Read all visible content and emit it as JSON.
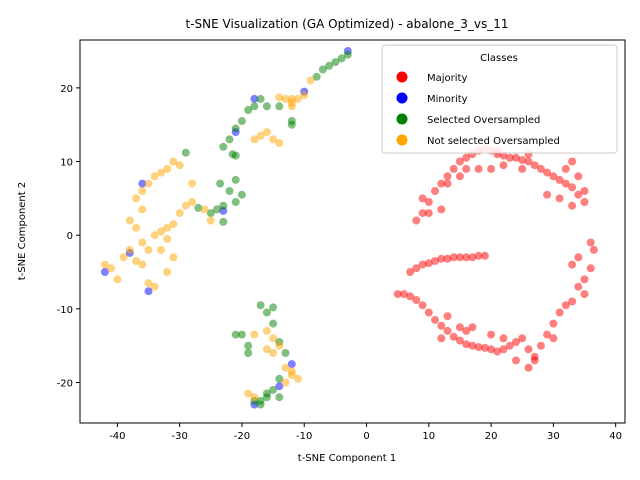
{
  "chart_data": {
    "type": "scatter",
    "title": "t-SNE Visualization (GA Optimized) - abalone_3_vs_11",
    "xlabel": "t-SNE Component 1",
    "ylabel": "t-SNE Component 2",
    "xlim": [
      -46,
      41.5
    ],
    "ylim": [
      -25.5,
      26.5
    ],
    "xticks": [
      -40,
      -30,
      -20,
      -10,
      0,
      10,
      20,
      30,
      40
    ],
    "yticks": [
      -20,
      -10,
      0,
      10,
      20
    ],
    "grid": false,
    "legend": {
      "title": "Classes",
      "placement": "top-right",
      "entries": [
        "Majority",
        "Minority",
        "Selected Oversampled",
        "Not selected Oversampled"
      ]
    },
    "series": [
      {
        "name": "Majority",
        "color": "#ff0000",
        "points": [
          [
            5,
            -8
          ],
          [
            6,
            -8
          ],
          [
            7,
            -8.3
          ],
          [
            8,
            -8.8
          ],
          [
            9,
            -9.5
          ],
          [
            10,
            -10.5
          ],
          [
            11,
            -11.5
          ],
          [
            12,
            -12.3
          ],
          [
            13,
            -13
          ],
          [
            14,
            -13.8
          ],
          [
            15,
            -14.3
          ],
          [
            16,
            -14.8
          ],
          [
            17,
            -15
          ],
          [
            18,
            -15.2
          ],
          [
            19,
            -15.3
          ],
          [
            20,
            -15.5
          ],
          [
            21,
            -15.8
          ],
          [
            22,
            -15.5
          ],
          [
            23,
            -15
          ],
          [
            24,
            -14.5
          ],
          [
            25,
            -14
          ],
          [
            26,
            -15.5
          ],
          [
            27,
            -16.5
          ],
          [
            28,
            -15
          ],
          [
            29,
            -13.5
          ],
          [
            30,
            -12
          ],
          [
            31,
            -10.5
          ],
          [
            32,
            -9.5
          ],
          [
            33,
            -9
          ],
          [
            34,
            -7
          ],
          [
            35,
            -6
          ],
          [
            36,
            -4.5
          ],
          [
            36.5,
            -2
          ],
          [
            36,
            -1
          ],
          [
            34,
            -3
          ],
          [
            33,
            -4
          ],
          [
            35,
            -8
          ],
          [
            30,
            -14
          ],
          [
            26,
            -18
          ],
          [
            27,
            -17
          ],
          [
            12,
            -14
          ],
          [
            13,
            -11
          ],
          [
            15,
            -12.5
          ],
          [
            17,
            -12.5
          ],
          [
            16,
            -13
          ],
          [
            20,
            -13.5
          ],
          [
            22,
            -14
          ],
          [
            24,
            -17
          ],
          [
            7,
            -5
          ],
          [
            8,
            -4.5
          ],
          [
            9,
            -4
          ],
          [
            10,
            -3.8
          ],
          [
            11,
            -3.5
          ],
          [
            12,
            -3.2
          ],
          [
            13,
            -3.2
          ],
          [
            14,
            -3
          ],
          [
            15,
            -3
          ],
          [
            16,
            -3
          ],
          [
            17,
            -3
          ],
          [
            18,
            -2.8
          ],
          [
            19,
            -2.8
          ],
          [
            8,
            2
          ],
          [
            9,
            3
          ],
          [
            10,
            4.5
          ],
          [
            11,
            6
          ],
          [
            12,
            7
          ],
          [
            13,
            8
          ],
          [
            14,
            9
          ],
          [
            15,
            10
          ],
          [
            16,
            10.5
          ],
          [
            17,
            11
          ],
          [
            18,
            11.5
          ],
          [
            19,
            11.8
          ],
          [
            20,
            11.5
          ],
          [
            21,
            11
          ],
          [
            22,
            10.8
          ],
          [
            23,
            10.5
          ],
          [
            24,
            10.5
          ],
          [
            25,
            10.2
          ],
          [
            26,
            10
          ],
          [
            27,
            9.5
          ],
          [
            28,
            9
          ],
          [
            29,
            8.5
          ],
          [
            30,
            8
          ],
          [
            31,
            7.5
          ],
          [
            32,
            7
          ],
          [
            33,
            6.5
          ],
          [
            34,
            5.5
          ],
          [
            35,
            4.5
          ],
          [
            33,
            10
          ],
          [
            32,
            9
          ],
          [
            34,
            8
          ],
          [
            35,
            6
          ],
          [
            33,
            4
          ],
          [
            31,
            5
          ],
          [
            29,
            5.5
          ],
          [
            20,
            9
          ],
          [
            22,
            9.5
          ],
          [
            15,
            8
          ],
          [
            16,
            9
          ],
          [
            12,
            3.5
          ],
          [
            10,
            3
          ],
          [
            9,
            5
          ],
          [
            13,
            7
          ],
          [
            25,
            9
          ],
          [
            26,
            11
          ],
          [
            18,
            9
          ],
          [
            21,
            11.5
          ]
        ]
      },
      {
        "name": "Minority",
        "color": "#0000ff",
        "points": [
          [
            -42,
            -5
          ],
          [
            -38,
            -2.4
          ],
          [
            -35,
            -7.6
          ],
          [
            -36,
            7
          ],
          [
            -23,
            3.3
          ],
          [
            -21,
            14
          ],
          [
            -18,
            18.5
          ],
          [
            -10,
            19.5
          ],
          [
            -3,
            25
          ],
          [
            -12,
            -17.5
          ],
          [
            -14,
            -20.5
          ],
          [
            -18,
            -23
          ]
        ]
      },
      {
        "name": "Selected Oversampled",
        "color": "#008000",
        "points": [
          [
            -3,
            24.5
          ],
          [
            -4,
            24
          ],
          [
            -5,
            23.5
          ],
          [
            -6,
            23
          ],
          [
            -7,
            22.5
          ],
          [
            -8,
            21.5
          ],
          [
            -12,
            15.5
          ],
          [
            -12,
            15
          ],
          [
            -14,
            17.5
          ],
          [
            -16,
            17.5
          ],
          [
            -17,
            18.5
          ],
          [
            -18,
            17.5
          ],
          [
            -19,
            17
          ],
          [
            -20,
            15.5
          ],
          [
            -21,
            14.5
          ],
          [
            -22,
            13
          ],
          [
            -21.5,
            11
          ],
          [
            -23,
            12
          ],
          [
            -21,
            7.5
          ],
          [
            -22,
            6
          ],
          [
            -21,
            4.5
          ],
          [
            -20,
            5.5
          ],
          [
            -23,
            4
          ],
          [
            -24,
            3.5
          ],
          [
            -25,
            3
          ],
          [
            -27,
            3.7
          ],
          [
            -23.5,
            7
          ],
          [
            -23,
            1.8
          ],
          [
            -29,
            11.2
          ],
          [
            -21,
            10.8
          ],
          [
            -20,
            -13.5
          ],
          [
            -21,
            -13.5
          ],
          [
            -19,
            -15
          ],
          [
            -19,
            -16
          ],
          [
            -17,
            -9.5
          ],
          [
            -16,
            -10.5
          ],
          [
            -15,
            -12
          ],
          [
            -14,
            -14.5
          ],
          [
            -13,
            -16
          ],
          [
            -14,
            -19.5
          ],
          [
            -15,
            -21
          ],
          [
            -16,
            -22
          ],
          [
            -17,
            -22.5
          ],
          [
            -14,
            -22
          ],
          [
            -16,
            -21.5
          ],
          [
            -17,
            -23
          ],
          [
            -18,
            -22.5
          ],
          [
            -15,
            -9.8
          ]
        ]
      },
      {
        "name": "Not selected Oversampled",
        "color": "#ffa500",
        "points": [
          [
            -42,
            -4
          ],
          [
            -41,
            -4.5
          ],
          [
            -40,
            -6
          ],
          [
            -39,
            -3
          ],
          [
            -38,
            -2
          ],
          [
            -37,
            -3.5
          ],
          [
            -36,
            -4
          ],
          [
            -35,
            -6.5
          ],
          [
            -34,
            -7
          ],
          [
            -35,
            -2
          ],
          [
            -36,
            -1
          ],
          [
            -34,
            0
          ],
          [
            -33,
            0.5
          ],
          [
            -32,
            1
          ],
          [
            -31,
            1.5
          ],
          [
            -32,
            -0.5
          ],
          [
            -33,
            -2
          ],
          [
            -31,
            -3
          ],
          [
            -32,
            -5
          ],
          [
            -30,
            3
          ],
          [
            -29,
            4
          ],
          [
            -28,
            4.5
          ],
          [
            -30,
            9.5
          ],
          [
            -31,
            10
          ],
          [
            -32,
            9
          ],
          [
            -33,
            8.5
          ],
          [
            -34,
            8
          ],
          [
            -35,
            7
          ],
          [
            -36,
            6
          ],
          [
            -37,
            5
          ],
          [
            -38,
            2
          ],
          [
            -37,
            1
          ],
          [
            -36,
            3.5
          ],
          [
            -28,
            7
          ],
          [
            -25,
            2
          ],
          [
            -26,
            3.5
          ],
          [
            -12,
            18.5
          ],
          [
            -11,
            18.5
          ],
          [
            -10,
            19
          ],
          [
            -9,
            21
          ],
          [
            -13,
            18.5
          ],
          [
            -14,
            18.7
          ],
          [
            -12,
            17.5
          ],
          [
            -18,
            13
          ],
          [
            -17,
            13.5
          ],
          [
            -16,
            14
          ],
          [
            -15,
            13
          ],
          [
            -14,
            12.5
          ],
          [
            -12,
            18
          ],
          [
            -16,
            -13
          ],
          [
            -15,
            -14
          ],
          [
            -14,
            -15
          ],
          [
            -13,
            -18
          ],
          [
            -12,
            -19
          ],
          [
            -11,
            -19.5
          ],
          [
            -16,
            -15.5
          ],
          [
            -18,
            -13.5
          ],
          [
            -19,
            -21.5
          ],
          [
            -18,
            -22
          ],
          [
            -13,
            -20
          ],
          [
            -12,
            -18.5
          ],
          [
            -15,
            -16
          ]
        ]
      }
    ]
  }
}
